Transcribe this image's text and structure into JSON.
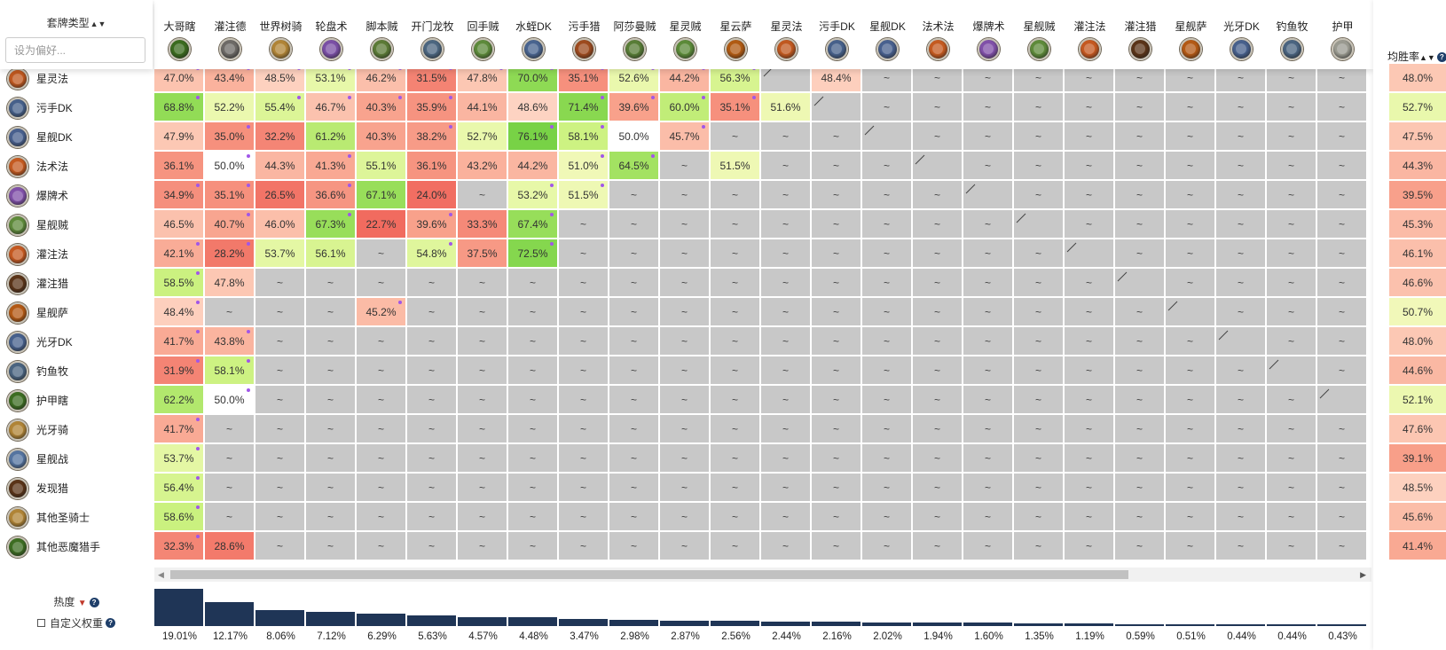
{
  "left_header": {
    "archetype_label": "套牌类型",
    "sort_glyph": "▲▼",
    "favorite_placeholder": "设为偏好..."
  },
  "right_header": {
    "winrate_label": "均胜率",
    "sort_glyph": "▲▼",
    "help_glyph": "?"
  },
  "popularity": {
    "label": "热度",
    "help_glyph": "?",
    "custom_weight_label": "自定义权重"
  },
  "columns": [
    {
      "name": "大哥瞎",
      "icon": "green-demon-icon",
      "color": "#3b6b1f"
    },
    {
      "name": "灌注德",
      "icon": "grey-druid-icon",
      "color": "#6d6a66"
    },
    {
      "name": "世界树骑",
      "icon": "paladin-hammer-icon",
      "color": "#b08436"
    },
    {
      "name": "轮盘术",
      "icon": "purple-warlock-icon",
      "color": "#7a4fa5"
    },
    {
      "name": "脚本贼",
      "icon": "green-rogue-icon",
      "color": "#5b7a36"
    },
    {
      "name": "开门龙牧",
      "icon": "blue-priest-icon",
      "color": "#4c6680"
    },
    {
      "name": "回手贼",
      "icon": "green-rogue-icon",
      "color": "#5d8a3a"
    },
    {
      "name": "水蛭DK",
      "icon": "blue-dk-icon",
      "color": "#49648f"
    },
    {
      "name": "污手猎",
      "icon": "orange-hunter-icon",
      "color": "#9d4a1e"
    },
    {
      "name": "阿莎曼贼",
      "icon": "green-rogue-icon",
      "color": "#587d36"
    },
    {
      "name": "星灵贼",
      "icon": "green-rogue-icon",
      "color": "#5b8a38"
    },
    {
      "name": "星云萨",
      "icon": "orange-shaman-icon",
      "color": "#b05a12"
    },
    {
      "name": "星灵法",
      "icon": "orange-mage-icon",
      "color": "#c0581f"
    },
    {
      "name": "污手DK",
      "icon": "blue-dk-icon",
      "color": "#46608a"
    },
    {
      "name": "星舰DK",
      "icon": "blue-dk-icon",
      "color": "#48608e"
    },
    {
      "name": "法术法",
      "icon": "orange-mage-icon",
      "color": "#c45a20"
    },
    {
      "name": "爆牌术",
      "icon": "purple-warlock-icon",
      "color": "#8050a8"
    },
    {
      "name": "星舰贼",
      "icon": "green-rogue-icon",
      "color": "#5e8a3a"
    },
    {
      "name": "灌注法",
      "icon": "orange-mage-icon",
      "color": "#c45820"
    },
    {
      "name": "灌注猎",
      "icon": "dark-hunter-icon",
      "color": "#5a3418"
    },
    {
      "name": "星舰萨",
      "icon": "orange-shaman-icon",
      "color": "#b35914"
    },
    {
      "name": "光牙DK",
      "icon": "blue-dk-icon",
      "color": "#47608c"
    },
    {
      "name": "钓鱼牧",
      "icon": "blue-priest-icon",
      "color": "#4a6480"
    },
    {
      "name": "护甲",
      "icon": "grey-hunter-icon",
      "color": "#9a9a90"
    }
  ],
  "rows": [
    {
      "name": "星灵法",
      "icon": "orange-mage-icon",
      "color": "#c0581f",
      "cells": [
        "47.0%",
        "43.4%",
        "48.5%",
        "53.1%",
        "46.2%",
        "31.5%",
        "47.8%",
        "70.0%",
        "35.1%",
        "52.6%",
        "44.2%",
        "56.3%",
        "/",
        "48.4%",
        "~",
        "~",
        "~",
        "~",
        "~",
        "~",
        "~",
        "~",
        "~",
        "~"
      ],
      "winrate": "48.0%"
    },
    {
      "name": "污手DK",
      "icon": "blue-dk-icon",
      "color": "#46608a",
      "cells": [
        "68.8%",
        "52.2%",
        "55.4%",
        "46.7%",
        "40.3%",
        "35.9%",
        "44.1%",
        "48.6%",
        "71.4%",
        "39.6%",
        "60.0%",
        "35.1%",
        "51.6%",
        "/",
        "~",
        "~",
        "~",
        "~",
        "~",
        "~",
        "~",
        "~",
        "~",
        "~"
      ],
      "winrate": "52.7%"
    },
    {
      "name": "星舰DK",
      "icon": "blue-dk-icon",
      "color": "#48608e",
      "cells": [
        "47.9%",
        "35.0%",
        "32.2%",
        "61.2%",
        "40.3%",
        "38.2%",
        "52.7%",
        "76.1%",
        "58.1%",
        "50.0%",
        "45.7%",
        "~",
        "~",
        "~",
        "/",
        "~",
        "~",
        "~",
        "~",
        "~",
        "~",
        "~",
        "~",
        "~"
      ],
      "winrate": "47.5%"
    },
    {
      "name": "法术法",
      "icon": "orange-mage-icon",
      "color": "#c45a20",
      "cells": [
        "36.1%",
        "50.0%",
        "44.3%",
        "41.3%",
        "55.1%",
        "36.1%",
        "43.2%",
        "44.2%",
        "51.0%",
        "64.5%",
        "~",
        "51.5%",
        "~",
        "~",
        "~",
        "/",
        "~",
        "~",
        "~",
        "~",
        "~",
        "~",
        "~",
        "~"
      ],
      "winrate": "44.3%"
    },
    {
      "name": "爆牌术",
      "icon": "purple-warlock-icon",
      "color": "#8050a8",
      "cells": [
        "34.9%",
        "35.1%",
        "26.5%",
        "36.6%",
        "67.1%",
        "24.0%",
        "~",
        "53.2%",
        "51.5%",
        "~",
        "~",
        "~",
        "~",
        "~",
        "~",
        "~",
        "/",
        "~",
        "~",
        "~",
        "~",
        "~",
        "~",
        "~"
      ],
      "winrate": "39.5%"
    },
    {
      "name": "星舰贼",
      "icon": "green-rogue-icon",
      "color": "#5e8a3a",
      "cells": [
        "46.5%",
        "40.7%",
        "46.0%",
        "67.3%",
        "22.7%",
        "39.6%",
        "33.3%",
        "67.4%",
        "~",
        "~",
        "~",
        "~",
        "~",
        "~",
        "~",
        "~",
        "~",
        "/",
        "~",
        "~",
        "~",
        "~",
        "~",
        "~"
      ],
      "winrate": "45.3%"
    },
    {
      "name": "灌注法",
      "icon": "orange-mage-icon",
      "color": "#c45820",
      "cells": [
        "42.1%",
        "28.2%",
        "53.7%",
        "56.1%",
        "~",
        "54.8%",
        "37.5%",
        "72.5%",
        "~",
        "~",
        "~",
        "~",
        "~",
        "~",
        "~",
        "~",
        "~",
        "~",
        "/",
        "~",
        "~",
        "~",
        "~",
        "~"
      ],
      "winrate": "46.1%"
    },
    {
      "name": "灌注猎",
      "icon": "dark-hunter-icon",
      "color": "#5a3418",
      "cells": [
        "58.5%",
        "47.8%",
        "~",
        "~",
        "~",
        "~",
        "~",
        "~",
        "~",
        "~",
        "~",
        "~",
        "~",
        "~",
        "~",
        "~",
        "~",
        "~",
        "~",
        "/",
        "~",
        "~",
        "~",
        "~"
      ],
      "winrate": "46.6%"
    },
    {
      "name": "星舰萨",
      "icon": "orange-shaman-icon",
      "color": "#b35914",
      "cells": [
        "48.4%",
        "~",
        "~",
        "~",
        "45.2%",
        "~",
        "~",
        "~",
        "~",
        "~",
        "~",
        "~",
        "~",
        "~",
        "~",
        "~",
        "~",
        "~",
        "~",
        "~",
        "/",
        "~",
        "~",
        "~"
      ],
      "winrate": "50.7%"
    },
    {
      "name": "光牙DK",
      "icon": "blue-dk-icon",
      "color": "#47608c",
      "cells": [
        "41.7%",
        "43.8%",
        "~",
        "~",
        "~",
        "~",
        "~",
        "~",
        "~",
        "~",
        "~",
        "~",
        "~",
        "~",
        "~",
        "~",
        "~",
        "~",
        "~",
        "~",
        "~",
        "/",
        "~",
        "~"
      ],
      "winrate": "48.0%"
    },
    {
      "name": "钓鱼牧",
      "icon": "blue-priest-icon",
      "color": "#4a6480",
      "cells": [
        "31.9%",
        "58.1%",
        "~",
        "~",
        "~",
        "~",
        "~",
        "~",
        "~",
        "~",
        "~",
        "~",
        "~",
        "~",
        "~",
        "~",
        "~",
        "~",
        "~",
        "~",
        "~",
        "~",
        "/",
        "~"
      ],
      "winrate": "44.6%"
    },
    {
      "name": "护甲瞎",
      "icon": "green-demon-icon",
      "color": "#3d6d22",
      "cells": [
        "62.2%",
        "50.0%",
        "~",
        "~",
        "~",
        "~",
        "~",
        "~",
        "~",
        "~",
        "~",
        "~",
        "~",
        "~",
        "~",
        "~",
        "~",
        "~",
        "~",
        "~",
        "~",
        "~",
        "~",
        "/"
      ],
      "winrate": "52.1%"
    },
    {
      "name": "光牙骑",
      "icon": "paladin-hammer-icon",
      "color": "#b08436",
      "cells": [
        "41.7%",
        "~",
        "~",
        "~",
        "~",
        "~",
        "~",
        "~",
        "~",
        "~",
        "~",
        "~",
        "~",
        "~",
        "~",
        "~",
        "~",
        "~",
        "~",
        "~",
        "~",
        "~",
        "~",
        "~"
      ],
      "winrate": "47.6%"
    },
    {
      "name": "星舰战",
      "icon": "blue-warrior-icon",
      "color": "#5574a0",
      "cells": [
        "53.7%",
        "~",
        "~",
        "~",
        "~",
        "~",
        "~",
        "~",
        "~",
        "~",
        "~",
        "~",
        "~",
        "~",
        "~",
        "~",
        "~",
        "~",
        "~",
        "~",
        "~",
        "~",
        "~",
        "~"
      ],
      "winrate": "39.1%"
    },
    {
      "name": "发现猎",
      "icon": "dark-hunter-icon",
      "color": "#5a3418",
      "cells": [
        "56.4%",
        "~",
        "~",
        "~",
        "~",
        "~",
        "~",
        "~",
        "~",
        "~",
        "~",
        "~",
        "~",
        "~",
        "~",
        "~",
        "~",
        "~",
        "~",
        "~",
        "~",
        "~",
        "~",
        "~"
      ],
      "winrate": "48.5%"
    },
    {
      "name": "其他圣骑士",
      "icon": "paladin-hammer-icon",
      "color": "#b08436",
      "cells": [
        "58.6%",
        "~",
        "~",
        "~",
        "~",
        "~",
        "~",
        "~",
        "~",
        "~",
        "~",
        "~",
        "~",
        "~",
        "~",
        "~",
        "~",
        "~",
        "~",
        "~",
        "~",
        "~",
        "~",
        "~"
      ],
      "winrate": "45.6%"
    },
    {
      "name": "其他恶魔猎手",
      "icon": "green-demon-icon",
      "color": "#3d6d22",
      "cells": [
        "32.3%",
        "28.6%",
        "~",
        "~",
        "~",
        "~",
        "~",
        "~",
        "~",
        "~",
        "~",
        "~",
        "~",
        "~",
        "~",
        "~",
        "~",
        "~",
        "~",
        "~",
        "~",
        "~",
        "~",
        "~"
      ],
      "winrate": "41.4%"
    }
  ],
  "dot_cells": [
    "0-0",
    "1-0",
    "2-1",
    "3-3",
    "4-0",
    "5-3",
    "6-0",
    "7-0",
    "0-1",
    "0-2",
    "0-3",
    "0-4",
    "0-5",
    "0-6",
    "0-7",
    "0-8",
    "0-9",
    "0-10",
    "0-11",
    "0-12",
    "1-4",
    "1-5",
    "1-8",
    "1-9",
    "1-10",
    "1-11",
    "2-7",
    "3-8",
    "3-9",
    "4-7",
    "5-7",
    "6-7",
    "8-0",
    "9-0",
    "9-1",
    "10-0",
    "10-1",
    "11-1",
    "12-0",
    "13-0",
    "14-0",
    "15-0",
    "16-0",
    "1-2",
    "1-3",
    "2-5",
    "2-8",
    "2-10",
    "3-1",
    "4-1",
    "4-3",
    "5-1",
    "5-5",
    "6-1",
    "6-4",
    "6-5",
    "4-8",
    "8-4"
  ],
  "popularity_values": [
    "19.01%",
    "12.17%",
    "8.06%",
    "7.12%",
    "6.29%",
    "5.63%",
    "4.57%",
    "4.48%",
    "3.47%",
    "2.98%",
    "2.87%",
    "2.56%",
    "2.44%",
    "2.16%",
    "2.02%",
    "1.94%",
    "1.60%",
    "1.35%",
    "1.19%",
    "0.59%",
    "0.51%",
    "0.44%",
    "0.44%",
    "0.43%"
  ],
  "popularity_fractions": [
    0.1901,
    0.1217,
    0.0806,
    0.0712,
    0.0629,
    0.0563,
    0.0457,
    0.0448,
    0.0347,
    0.0298,
    0.0287,
    0.0256,
    0.0244,
    0.0216,
    0.0202,
    0.0194,
    0.016,
    0.0135,
    0.0119,
    0.0059,
    0.0051,
    0.0044,
    0.0044,
    0.0043
  ],
  "colors": {
    "empty": "#c8c8c8",
    "dot": "#a157e8",
    "bar": "#1f3556"
  }
}
